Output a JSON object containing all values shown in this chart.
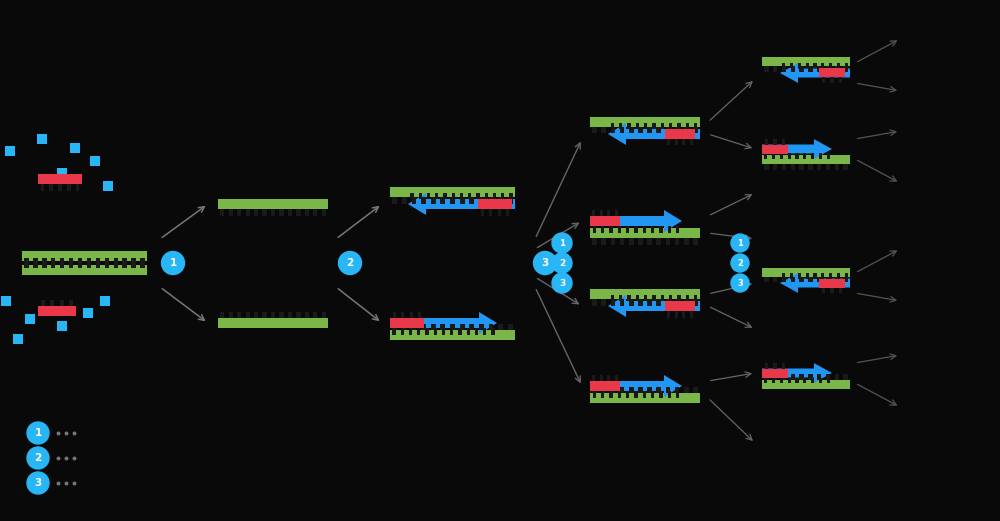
{
  "bg_color": "#090909",
  "green": "#7ab648",
  "red": "#e8384a",
  "blue": "#2196f3",
  "cyan": "#29b6f6",
  "arrow_color": "#555555",
  "figsize": [
    10.0,
    5.21
  ],
  "dpi": 100,
  "xlim": [
    0,
    10
  ],
  "ylim": [
    0,
    5.21
  ]
}
